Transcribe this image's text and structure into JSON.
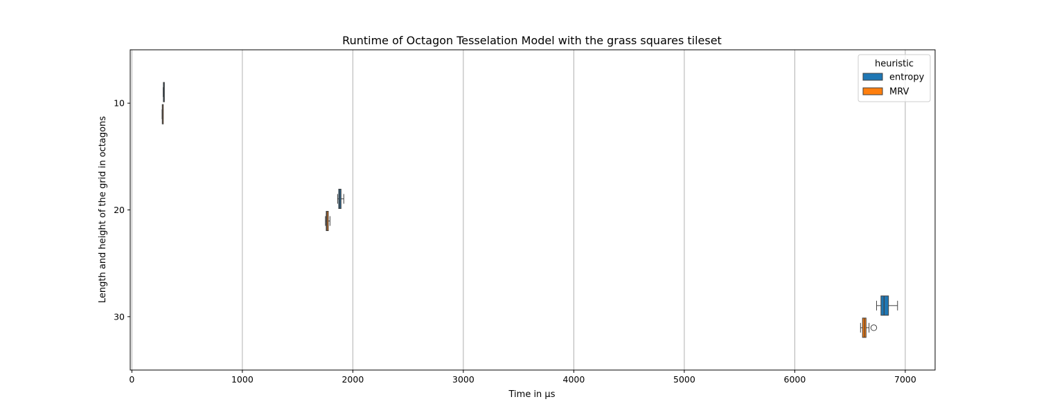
{
  "chart_data": {
    "type": "boxplot",
    "orientation": "horizontal",
    "title": "Runtime of Octagon Tesselation Model with the grass squares tileset",
    "xlabel": "Time in µs",
    "ylabel": "Length and height of the grid in octagons",
    "xlim": [
      -15,
      7270
    ],
    "x_ticks": [
      0,
      1000,
      2000,
      3000,
      4000,
      5000,
      6000,
      7000
    ],
    "categories": [
      10,
      20,
      30
    ],
    "grid": "x",
    "legend": {
      "title": "heuristic",
      "placement": "top-right",
      "entries": [
        "entropy",
        "MRV"
      ]
    },
    "series": [
      {
        "name": "entropy",
        "color": "#1f77b4",
        "boxes": [
          {
            "category": 10,
            "whisker_low": 283,
            "q1": 285,
            "median": 287,
            "q3": 289,
            "whisker_high": 292,
            "outliers": []
          },
          {
            "category": 20,
            "whisker_low": 1862,
            "q1": 1872,
            "median": 1882,
            "q3": 1893,
            "whisker_high": 1918,
            "outliers": []
          },
          {
            "category": 30,
            "whisker_low": 6740,
            "q1": 6780,
            "median": 6808,
            "q3": 6848,
            "whisker_high": 6930,
            "outliers": []
          }
        ]
      },
      {
        "name": "MRV",
        "color": "#ff7f0e",
        "boxes": [
          {
            "category": 10,
            "whisker_low": 273,
            "q1": 275,
            "median": 277,
            "q3": 280,
            "whisker_high": 283,
            "outliers": []
          },
          {
            "category": 20,
            "whisker_low": 1752,
            "q1": 1759,
            "median": 1766,
            "q3": 1778,
            "whisker_high": 1793,
            "outliers": []
          },
          {
            "category": 30,
            "whisker_low": 6595,
            "q1": 6613,
            "median": 6630,
            "q3": 6645,
            "whisker_high": 6672,
            "outliers": [
              6715
            ]
          }
        ]
      }
    ]
  }
}
